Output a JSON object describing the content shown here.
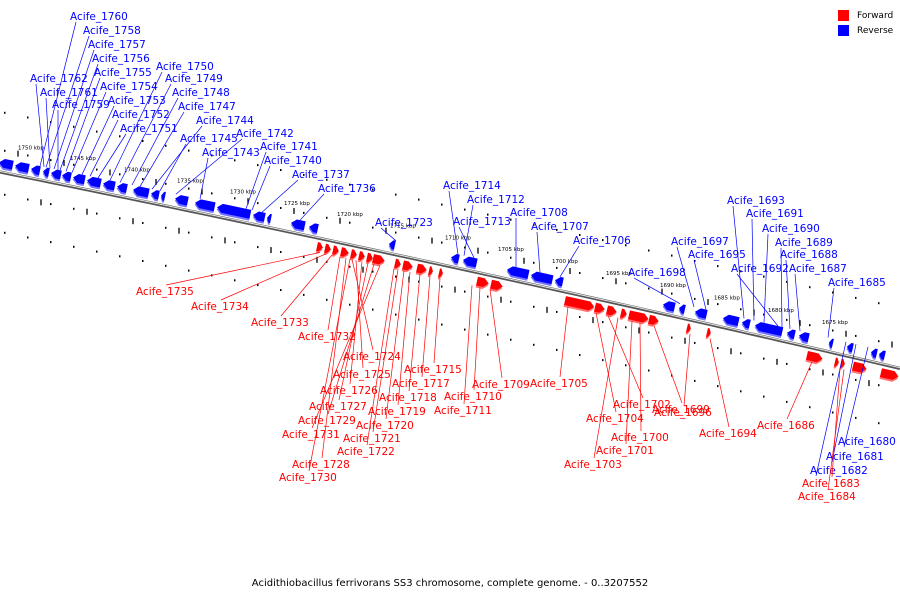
{
  "caption": "Acidithiobacillus ferrivorans SS3 chromosome, complete genome. - 0..3207552",
  "legend": [
    {
      "label": "Forward",
      "color": "#ff0000"
    },
    {
      "label": "Reverse",
      "color": "#0000ff"
    }
  ],
  "colors": {
    "forward": "#ff0000",
    "reverse": "#0000ff",
    "backbone": "#808080"
  },
  "scale_ticks": [
    "1750 kbp",
    "1745 kbp",
    "1740 kbp",
    "1735 kbp",
    "1730 kbp",
    "1725 kbp",
    "1720 kbp",
    "1715 kbp",
    "1710 kbp",
    "1705 kbp",
    "1700 kbp",
    "1695 kbp",
    "1690 kbp",
    "1685 kbp",
    "1680 kbp",
    "1675 kbp"
  ],
  "reverse_genes": [
    "Acife_1760",
    "Acife_1758",
    "Acife_1757",
    "Acife_1756",
    "Acife_1755",
    "Acife_1762",
    "Acife_1754",
    "Acife_1761",
    "Acife_1753",
    "Acife_1759",
    "Acife_1752",
    "Acife_1751",
    "Acife_1750",
    "Acife_1749",
    "Acife_1748",
    "Acife_1747",
    "Acife_1744",
    "Acife_1745",
    "Acife_1742",
    "Acife_1743",
    "Acife_1741",
    "Acife_1740",
    "Acife_1737",
    "Acife_1736",
    "Acife_1723",
    "Acife_1714",
    "Acife_1712",
    "Acife_1713",
    "Acife_1708",
    "Acife_1707",
    "Acife_1706",
    "Acife_1698",
    "Acife_1697",
    "Acife_1695",
    "Acife_1693",
    "Acife_1691",
    "Acife_1690",
    "Acife_1689",
    "Acife_1688",
    "Acife_1692",
    "Acife_1687",
    "Acife_1685",
    "Acife_1680",
    "Acife_1681",
    "Acife_1682"
  ],
  "forward_genes": [
    "Acife_1735",
    "Acife_1734",
    "Acife_1733",
    "Acife_1732",
    "Acife_1724",
    "Acife_1725",
    "Acife_1726",
    "Acife_1727",
    "Acife_1729",
    "Acife_1731",
    "Acife_1728",
    "Acife_1730",
    "Acife_1715",
    "Acife_1717",
    "Acife_1718",
    "Acife_1719",
    "Acife_1720",
    "Acife_1721",
    "Acife_1722",
    "Acife_1709",
    "Acife_1710",
    "Acife_1711",
    "Acife_1705",
    "Acife_1704",
    "Acife_1702",
    "Acife_1699",
    "Acife_1700",
    "Acife_1701",
    "Acife_1703",
    "Acife_1696",
    "Acife_1694",
    "Acife_1686",
    "Acife_1683",
    "Acife_1684"
  ]
}
